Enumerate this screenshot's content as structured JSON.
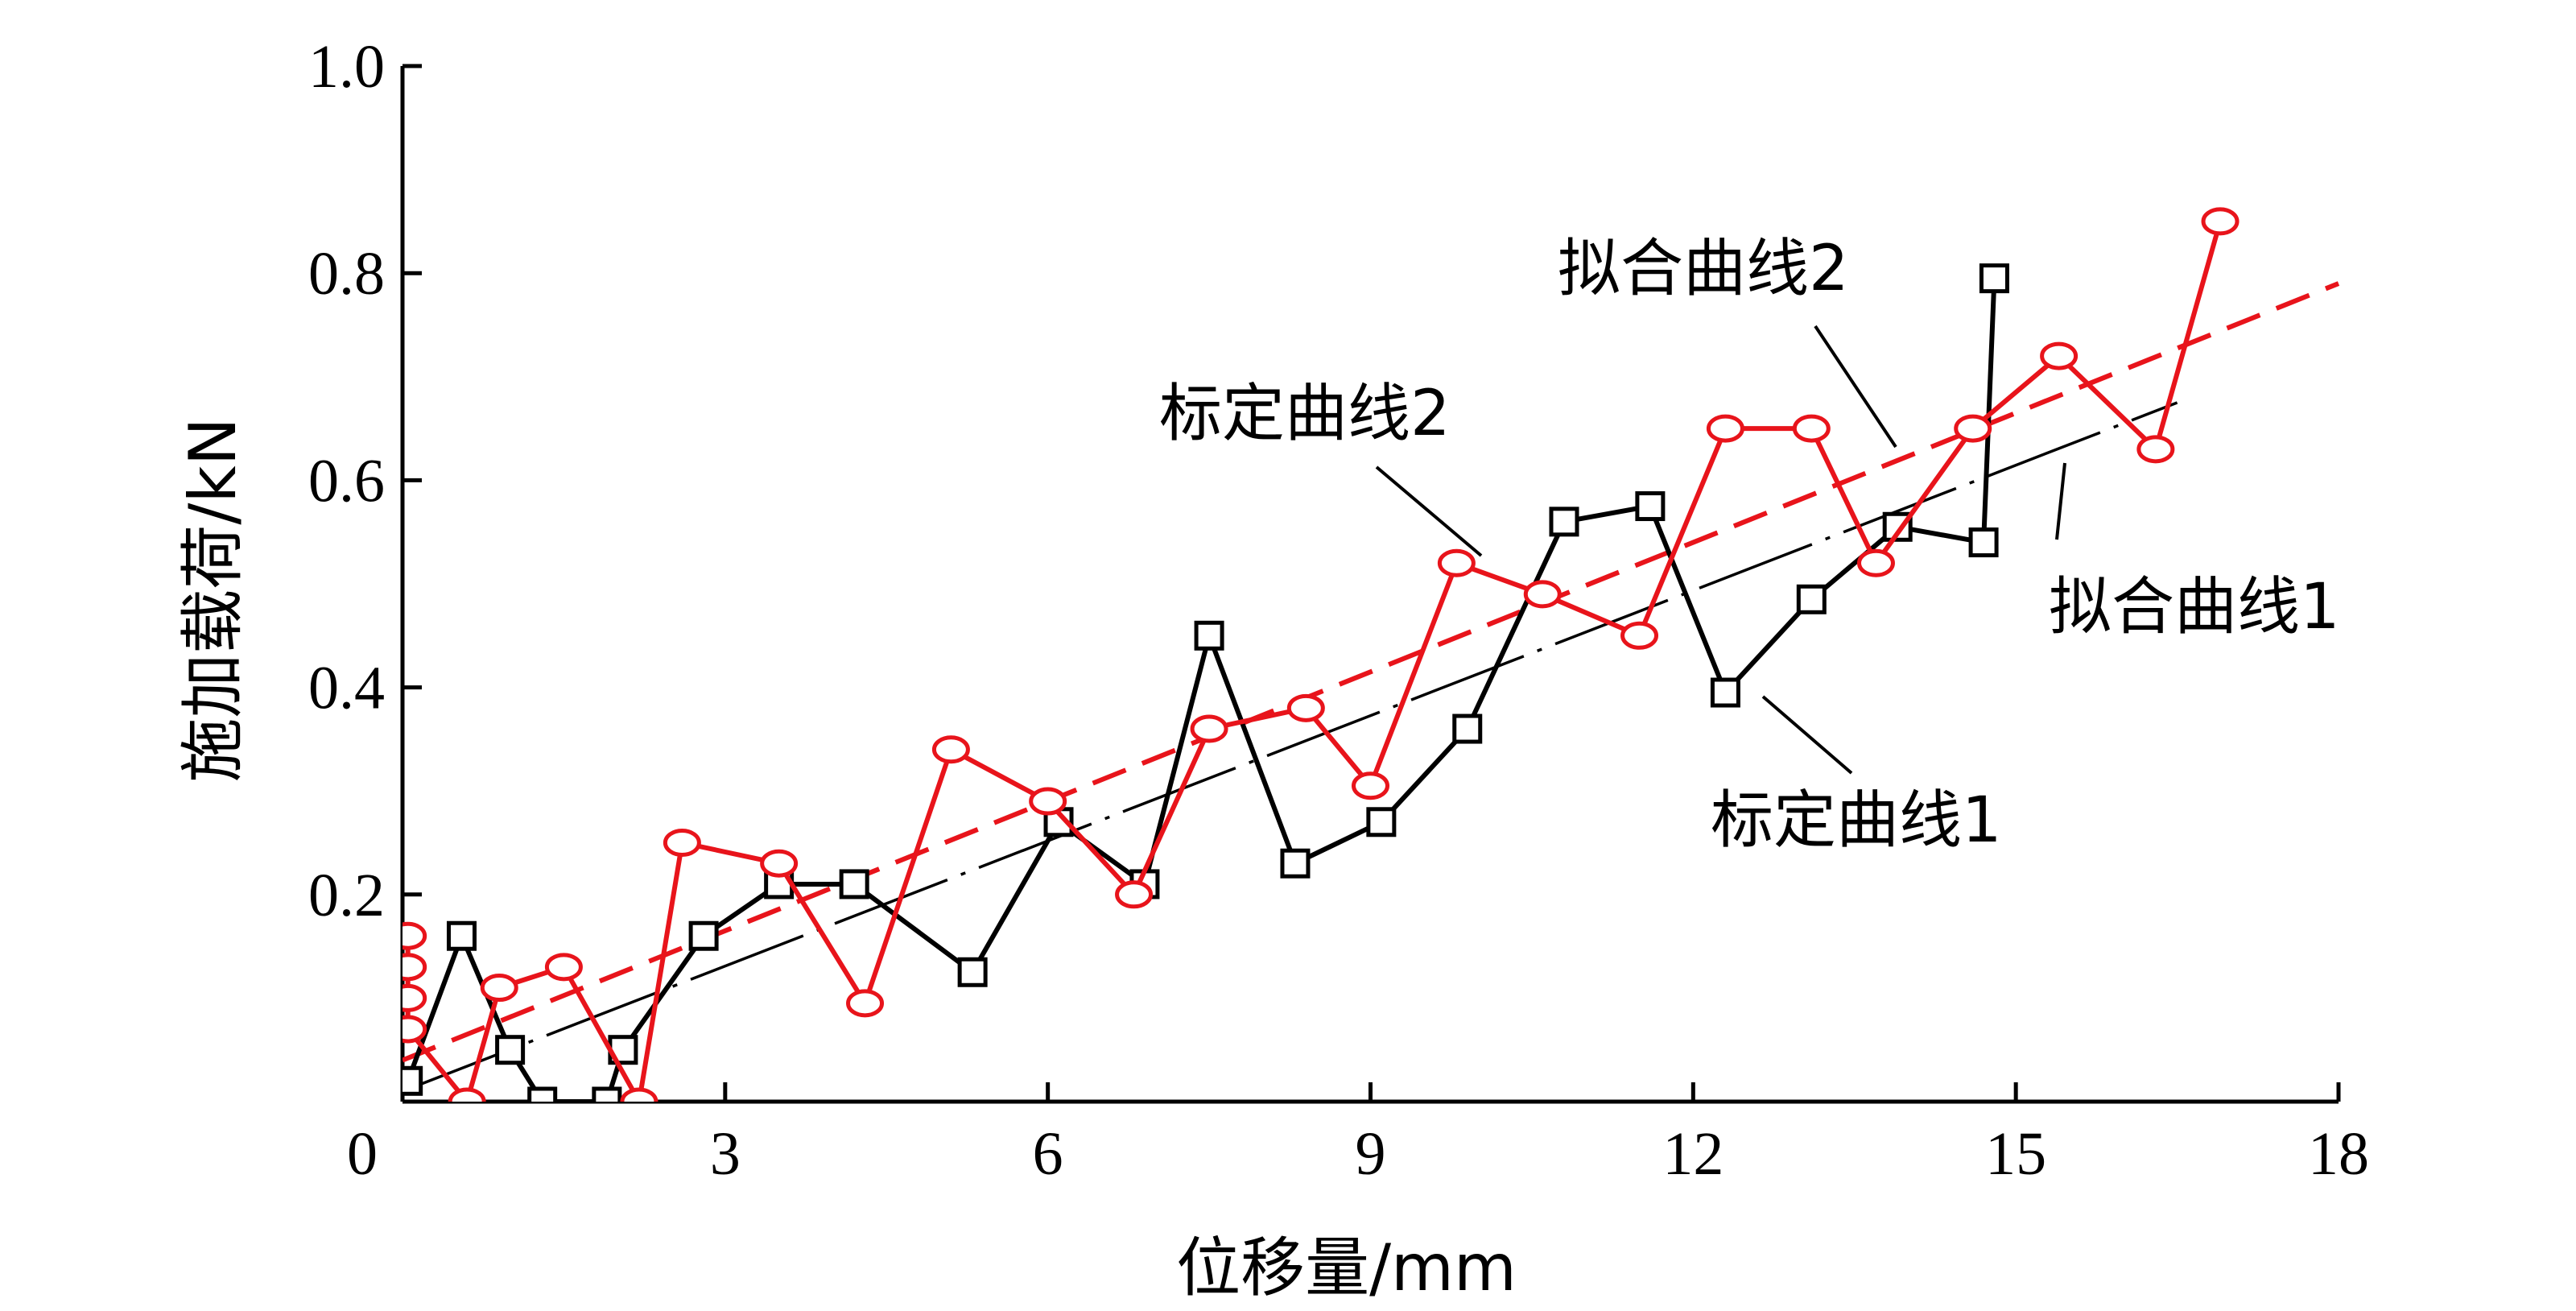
{
  "chart_data": {
    "type": "line",
    "xlabel": "位移量/mm",
    "ylabel": "施加载荷/kN",
    "xlim": [
      0,
      18
    ],
    "ylim": [
      0,
      1.0
    ],
    "xticks": [
      0,
      3,
      6,
      9,
      12,
      15,
      18
    ],
    "yticks": [
      0.2,
      0.4,
      0.6,
      0.8,
      1.0
    ],
    "xtick_labels": [
      "0",
      "3",
      "6",
      "9",
      "12",
      "15",
      "18"
    ],
    "ytick_labels": [
      "0.2",
      "0.4",
      "0.6",
      "0.8",
      "1.0"
    ],
    "grid": false,
    "colors": {
      "black": "#000000",
      "red": "#e8141b"
    },
    "series": [
      {
        "name": "标定曲线1",
        "marker": "square",
        "color": "#000000",
        "x": [
          0.05,
          0.55,
          1.0,
          1.3,
          1.9,
          2.05,
          2.8,
          3.5,
          4.2,
          5.3,
          6.1,
          6.9,
          7.5,
          8.3,
          9.1,
          9.9,
          10.8,
          11.6,
          12.3,
          13.1,
          13.9,
          14.7,
          14.8
        ],
        "y": [
          0.02,
          0.16,
          0.05,
          0.0,
          0.0,
          0.05,
          0.16,
          0.21,
          0.21,
          0.125,
          0.27,
          0.21,
          0.45,
          0.23,
          0.27,
          0.36,
          0.56,
          0.575,
          0.395,
          0.485,
          0.555,
          0.54,
          0.795
        ]
      },
      {
        "name": "标定曲线2",
        "marker": "circle",
        "color": "#e8141b",
        "x": [
          0.05,
          0.05,
          0.05,
          0.05,
          0.6,
          0.9,
          1.5,
          2.2,
          2.6,
          3.5,
          4.3,
          5.1,
          6.0,
          6.8,
          7.5,
          8.4,
          9.0,
          9.8,
          10.6,
          11.5,
          12.3,
          13.1,
          13.7,
          14.6,
          15.4,
          16.3,
          16.9
        ],
        "y": [
          0.16,
          0.13,
          0.1,
          0.07,
          0.0,
          0.11,
          0.13,
          0.0,
          0.25,
          0.23,
          0.095,
          0.34,
          0.29,
          0.2,
          0.36,
          0.38,
          0.305,
          0.52,
          0.49,
          0.45,
          0.65,
          0.65,
          0.52,
          0.65,
          0.72,
          0.63,
          0.85
        ]
      },
      {
        "name": "拟合曲线1",
        "style": "dash-dot",
        "color": "#000000",
        "x": [
          0,
          16.5
        ],
        "y": [
          0.01,
          0.675
        ]
      },
      {
        "name": "拟合曲线2",
        "style": "dashed",
        "color": "#e8141b",
        "x": [
          0,
          18
        ],
        "y": [
          0.04,
          0.79
        ]
      }
    ],
    "annotations": [
      {
        "text": "标定曲线2",
        "series": "标定曲线2"
      },
      {
        "text": "拟合曲线2",
        "series": "拟合曲线2"
      },
      {
        "text": "拟合曲线1",
        "series": "拟合曲线1"
      },
      {
        "text": "标定曲线1",
        "series": "标定曲线1"
      }
    ]
  }
}
